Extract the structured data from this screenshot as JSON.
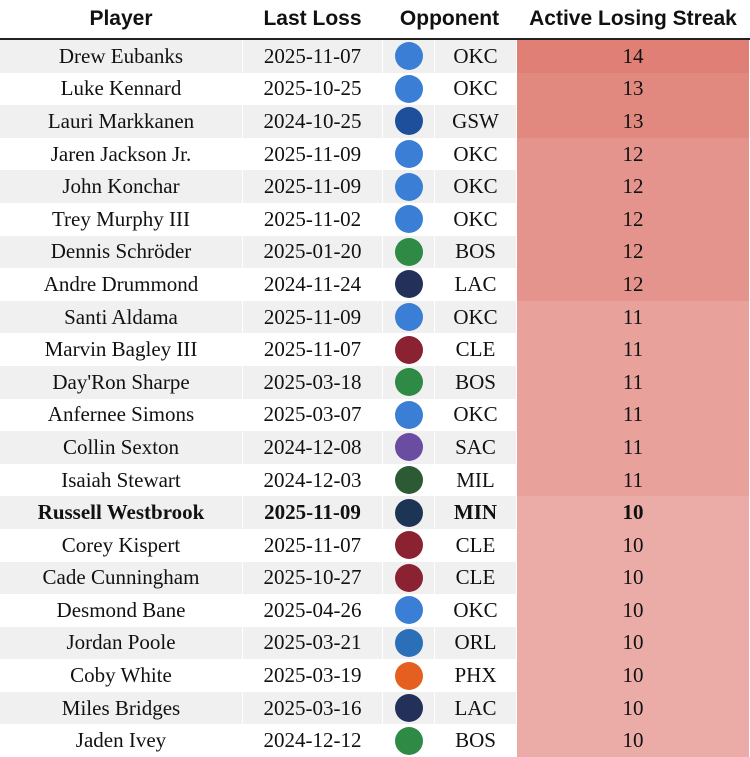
{
  "table": {
    "header": [
      "Player",
      "Last Loss",
      "Opponent",
      "Active Losing Streak"
    ],
    "rows": [
      {
        "player": "Drew Eubanks",
        "last_loss": "2025-11-07",
        "opponent": "OKC",
        "streak": 14,
        "color": "#df7f76",
        "logo_color": "#3a7fd5"
      },
      {
        "player": "Luke Kennard",
        "last_loss": "2025-10-25",
        "opponent": "OKC",
        "streak": 13,
        "color": "#e1887f",
        "logo_color": "#3a7fd5"
      },
      {
        "player": "Lauri Markkanen",
        "last_loss": "2024-10-25",
        "opponent": "GSW",
        "streak": 13,
        "color": "#e1887f",
        "logo_color": "#1d4f9a"
      },
      {
        "player": "Jaren Jackson Jr.",
        "last_loss": "2025-11-09",
        "opponent": "OKC",
        "streak": 12,
        "color": "#e4948d",
        "logo_color": "#3a7fd5"
      },
      {
        "player": "John Konchar",
        "last_loss": "2025-11-09",
        "opponent": "OKC",
        "streak": 12,
        "color": "#e4948d",
        "logo_color": "#3a7fd5"
      },
      {
        "player": "Trey Murphy III",
        "last_loss": "2025-11-02",
        "opponent": "OKC",
        "streak": 12,
        "color": "#e4948d",
        "logo_color": "#3a7fd5"
      },
      {
        "player": "Dennis Schröder",
        "last_loss": "2025-01-20",
        "opponent": "BOS",
        "streak": 12,
        "color": "#e4948d",
        "logo_color": "#2f8a45"
      },
      {
        "player": "Andre Drummond",
        "last_loss": "2024-11-24",
        "opponent": "LAC",
        "streak": 12,
        "color": "#e4948d",
        "logo_color": "#23305a"
      },
      {
        "player": "Santi Aldama",
        "last_loss": "2025-11-09",
        "opponent": "OKC",
        "streak": 11,
        "color": "#e8a19b",
        "logo_color": "#3a7fd5"
      },
      {
        "player": "Marvin Bagley III",
        "last_loss": "2025-11-07",
        "opponent": "CLE",
        "streak": 11,
        "color": "#e8a19b",
        "logo_color": "#8a2232"
      },
      {
        "player": "Day'Ron Sharpe",
        "last_loss": "2025-03-18",
        "opponent": "BOS",
        "streak": 11,
        "color": "#e8a19b",
        "logo_color": "#2f8a45"
      },
      {
        "player": "Anfernee Simons",
        "last_loss": "2025-03-07",
        "opponent": "OKC",
        "streak": 11,
        "color": "#e8a19b",
        "logo_color": "#3a7fd5"
      },
      {
        "player": "Collin Sexton",
        "last_loss": "2024-12-08",
        "opponent": "SAC",
        "streak": 11,
        "color": "#e8a19b",
        "logo_color": "#6a4ca0"
      },
      {
        "player": "Isaiah Stewart",
        "last_loss": "2024-12-03",
        "opponent": "MIL",
        "streak": 11,
        "color": "#e8a19b",
        "logo_color": "#2c5a35"
      },
      {
        "player": "Russell Westbrook",
        "last_loss": "2025-11-09",
        "opponent": "MIN",
        "streak": 10,
        "color": "#ebaca8",
        "logo_color": "#1c3554",
        "bold": true
      },
      {
        "player": "Corey Kispert",
        "last_loss": "2025-11-07",
        "opponent": "CLE",
        "streak": 10,
        "color": "#ebaca8",
        "logo_color": "#8a2232"
      },
      {
        "player": "Cade Cunningham",
        "last_loss": "2025-10-27",
        "opponent": "CLE",
        "streak": 10,
        "color": "#ebaca8",
        "logo_color": "#8a2232"
      },
      {
        "player": "Desmond Bane",
        "last_loss": "2025-04-26",
        "opponent": "OKC",
        "streak": 10,
        "color": "#ebaca8",
        "logo_color": "#3a7fd5"
      },
      {
        "player": "Jordan Poole",
        "last_loss": "2025-03-21",
        "opponent": "ORL",
        "streak": 10,
        "color": "#ebaca8",
        "logo_color": "#2b6fb8"
      },
      {
        "player": "Coby White",
        "last_loss": "2025-03-19",
        "opponent": "PHX",
        "streak": 10,
        "color": "#ebaca8",
        "logo_color": "#e56020"
      },
      {
        "player": "Miles Bridges",
        "last_loss": "2025-03-16",
        "opponent": "LAC",
        "streak": 10,
        "color": "#ebaca8",
        "logo_color": "#23305a"
      },
      {
        "player": "Jaden Ivey",
        "last_loss": "2024-12-12",
        "opponent": "BOS",
        "streak": 10,
        "color": "#ebaca8",
        "logo_color": "#2f8a45"
      }
    ]
  }
}
